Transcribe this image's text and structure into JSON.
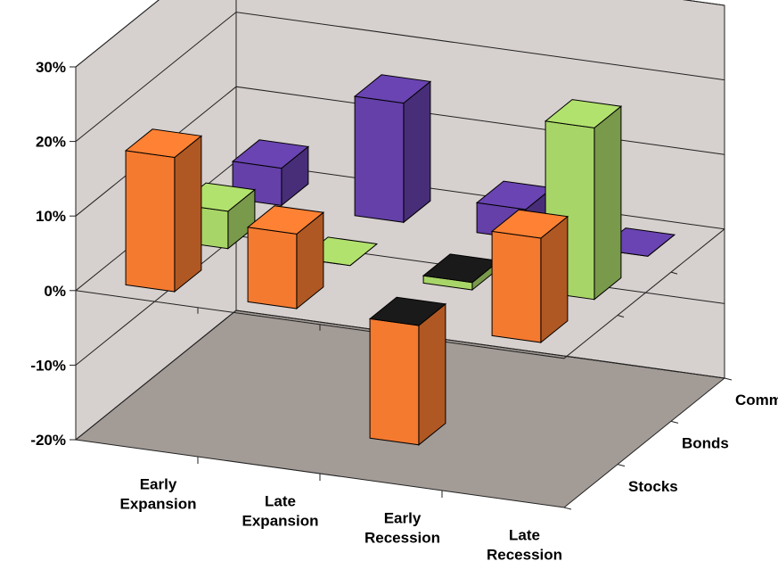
{
  "chart_data": {
    "type": "bar",
    "subtype": "3d-column",
    "categories": [
      "Early Expansion",
      "Late Expansion",
      "Early Recession",
      "Late Recession"
    ],
    "category_label_lines": [
      [
        "Early",
        "Expansion"
      ],
      [
        "Late",
        "Expansion"
      ],
      [
        "Early",
        "Recession"
      ],
      [
        "Late",
        "Recession"
      ]
    ],
    "series": [
      {
        "name": "Stocks",
        "values": [
          18,
          10,
          -16,
          14
        ],
        "color": "#F47A30"
      },
      {
        "name": "Bonds",
        "values": [
          5,
          0,
          -1,
          23
        ],
        "color": "#A8D568"
      },
      {
        "name": "Commodities",
        "values": [
          5,
          16,
          4,
          0
        ],
        "color": "#6440A8"
      }
    ],
    "y_ticks": [
      "30%",
      "20%",
      "10%",
      "0%",
      "-10%",
      "-20%"
    ],
    "y_tick_values": [
      30,
      20,
      10,
      0,
      -10,
      -20
    ],
    "ylim": [
      -20,
      30
    ],
    "gridlines": true,
    "title": "",
    "xlabel": "",
    "ylabel": "",
    "colors": {
      "back_wall": "#D6D0CE",
      "floor": "#A39B96",
      "grid": "#222222",
      "bar_top_negative": "#1A1A1A",
      "bar_outline": "#000000"
    }
  }
}
